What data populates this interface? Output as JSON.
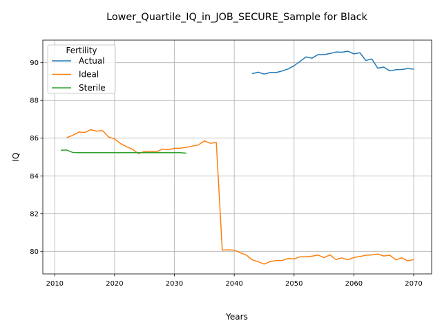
{
  "chart_data": {
    "type": "line",
    "title": "Lower_Quartile_IQ_in_JOB_SECURE_Sample for Black",
    "xlabel": "Years",
    "ylabel": "IQ",
    "xlim": [
      2008,
      2073
    ],
    "ylim": [
      78.8,
      91.2
    ],
    "xticks": [
      2010,
      2020,
      2030,
      2040,
      2050,
      2060,
      2070
    ],
    "yticks": [
      80,
      82,
      84,
      86,
      88,
      90
    ],
    "grid": true,
    "legend": {
      "title": "Fertility",
      "placement": "top-left"
    },
    "series": [
      {
        "name": "Actual",
        "color": "#1f77b4",
        "x": [
          2043,
          2044,
          2045,
          2046,
          2047,
          2048,
          2049,
          2050,
          2051,
          2052,
          2053,
          2054,
          2055,
          2056,
          2057,
          2058,
          2059,
          2060,
          2061,
          2062,
          2063,
          2064,
          2065,
          2066,
          2067,
          2068,
          2069,
          2070
        ],
        "y": [
          89.42,
          89.5,
          89.4,
          89.48,
          89.48,
          89.56,
          89.67,
          89.84,
          90.07,
          90.31,
          90.24,
          90.43,
          90.43,
          90.49,
          90.57,
          90.56,
          90.61,
          90.47,
          90.53,
          90.12,
          90.2,
          89.71,
          89.77,
          89.57,
          89.63,
          89.64,
          89.69,
          89.66
        ]
      },
      {
        "name": "Ideal",
        "color": "#ff7f0e",
        "x": [
          2012,
          2013,
          2014,
          2015,
          2016,
          2017,
          2018,
          2019,
          2020,
          2021,
          2022,
          2023,
          2024,
          2025,
          2026,
          2027,
          2028,
          2029,
          2030,
          2031,
          2032,
          2033,
          2034,
          2035,
          2036,
          2037,
          2038,
          2039,
          2040,
          2041,
          2042,
          2043,
          2044,
          2045,
          2046,
          2047,
          2048,
          2049,
          2050,
          2051,
          2052,
          2053,
          2054,
          2055,
          2056,
          2057,
          2058,
          2059,
          2060,
          2061,
          2062,
          2063,
          2064,
          2065,
          2066,
          2067,
          2068,
          2069,
          2070
        ],
        "y": [
          86.03,
          86.15,
          86.32,
          86.3,
          86.45,
          86.37,
          86.4,
          86.06,
          85.96,
          85.71,
          85.55,
          85.41,
          85.18,
          85.3,
          85.29,
          85.28,
          85.42,
          85.39,
          85.46,
          85.47,
          85.51,
          85.58,
          85.64,
          85.85,
          85.73,
          85.77,
          80.06,
          80.08,
          80.06,
          79.92,
          79.8,
          79.55,
          79.45,
          79.32,
          79.45,
          79.51,
          79.51,
          79.62,
          79.59,
          79.71,
          79.71,
          79.74,
          79.8,
          79.66,
          79.81,
          79.56,
          79.65,
          79.55,
          79.67,
          79.72,
          79.79,
          79.81,
          79.85,
          79.75,
          79.79,
          79.55,
          79.65,
          79.49,
          79.56
        ]
      },
      {
        "name": "Sterile",
        "color": "#2ca02c",
        "x": [
          2011,
          2012,
          2013,
          2014,
          2015,
          2016,
          2017,
          2018,
          2019,
          2020,
          2021,
          2022,
          2023,
          2024,
          2025,
          2026,
          2027,
          2028,
          2029,
          2030,
          2031,
          2032
        ],
        "y": [
          85.36,
          85.37,
          85.24,
          85.23,
          85.23,
          85.23,
          85.23,
          85.23,
          85.23,
          85.23,
          85.23,
          85.23,
          85.23,
          85.23,
          85.23,
          85.23,
          85.23,
          85.23,
          85.23,
          85.23,
          85.23,
          85.2
        ]
      }
    ]
  }
}
